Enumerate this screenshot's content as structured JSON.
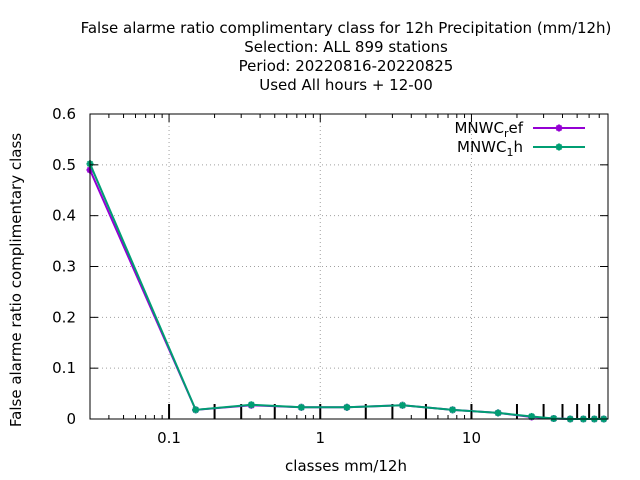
{
  "chart_data": {
    "type": "line",
    "title_lines": [
      "False alarme ratio complimentary class  for 12h Precipitation (mm/12h)",
      "Selection: ALL    899 stations",
      "Period: 20220816-20220825",
      "Used  All hours  + 12-00"
    ],
    "xlabel": "classes mm/12h",
    "ylabel": "False alarme ratio complimentary class",
    "xscale": "log",
    "xlim": [
      0.03,
      80
    ],
    "ylim": [
      0,
      0.6
    ],
    "x_ticks": [
      {
        "value": 0.1,
        "label": "0.1"
      },
      {
        "value": 1,
        "label": "1"
      },
      {
        "value": 10,
        "label": "10"
      }
    ],
    "y_ticks": [
      {
        "value": 0,
        "label": "0"
      },
      {
        "value": 0.1,
        "label": "0.1"
      },
      {
        "value": 0.2,
        "label": "0.2"
      },
      {
        "value": 0.3,
        "label": "0.3"
      },
      {
        "value": 0.4,
        "label": "0.4"
      },
      {
        "value": 0.5,
        "label": "0.5"
      },
      {
        "value": 0.6,
        "label": "0.6"
      }
    ],
    "grid": true,
    "legend_position": "top-right",
    "class_marks": [
      0.1,
      0.2,
      0.3,
      0.5,
      1,
      2,
      3,
      5,
      10,
      20,
      30,
      40,
      50,
      60,
      70
    ],
    "series": [
      {
        "name_main": "MNWC",
        "name_sub": "r",
        "name_tail": "ef",
        "color": "#9400d3",
        "x": [
          0.03,
          0.15,
          0.35,
          0.75,
          1.5,
          3.5,
          7.5,
          15,
          25,
          35,
          45,
          55,
          65,
          75
        ],
        "y": [
          0.49,
          0.018,
          0.027,
          0.023,
          0.023,
          0.027,
          0.018,
          0.012,
          0.004,
          0.001,
          0.0,
          0.0,
          0.0,
          0.0
        ]
      },
      {
        "name_main": "MNWC",
        "name_sub": "1",
        "name_tail": "h",
        "color": "#009e73",
        "x": [
          0.03,
          0.15,
          0.35,
          0.75,
          1.5,
          3.5,
          7.5,
          15,
          25,
          35,
          45,
          55,
          65,
          75
        ],
        "y": [
          0.502,
          0.018,
          0.028,
          0.023,
          0.023,
          0.027,
          0.018,
          0.012,
          0.005,
          0.001,
          0.0,
          0.0,
          0.0,
          0.0
        ]
      }
    ]
  }
}
